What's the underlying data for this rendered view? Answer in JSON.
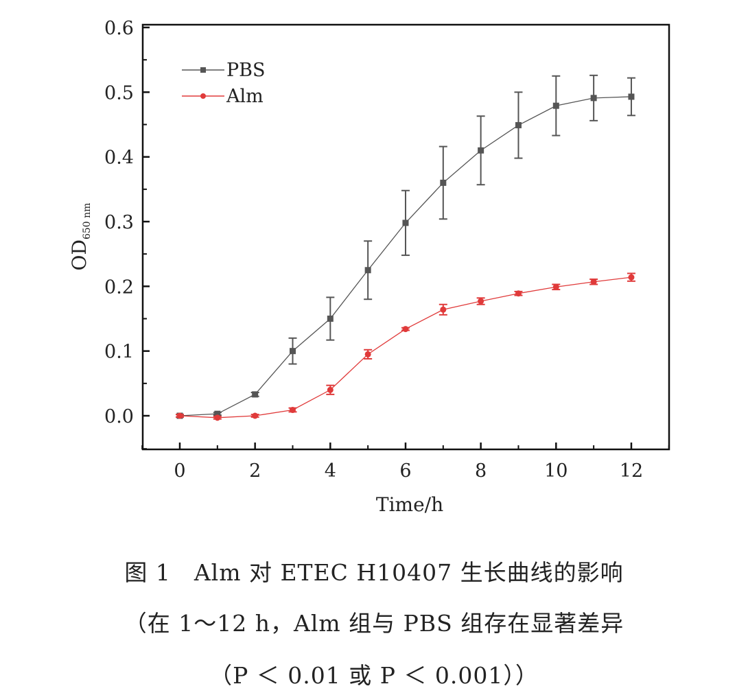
{
  "chart_data": {
    "type": "line",
    "xlabel": "Time/h",
    "ylabel": "OD",
    "ylabel_sub": "650 nm",
    "xlim": [
      -1,
      13.2
    ],
    "ylim": [
      -0.05,
      0.6
    ],
    "xticks": [
      0,
      2,
      4,
      6,
      8,
      10,
      12
    ],
    "yticks": [
      "0.0",
      "0.1",
      "0.2",
      "0.3",
      "0.4",
      "0.5",
      "0.6"
    ],
    "legend_position": "top-left",
    "x": [
      0,
      1,
      2,
      3,
      4,
      5,
      6,
      7,
      8,
      9,
      10,
      11,
      12
    ],
    "series": [
      {
        "name": "PBS",
        "color": "#555555",
        "marker": "square",
        "values": [
          0.0,
          0.003,
          0.033,
          0.1,
          0.15,
          0.225,
          0.298,
          0.36,
          0.41,
          0.449,
          0.479,
          0.491,
          0.493
        ],
        "errors": [
          0.002,
          0.002,
          0.003,
          0.02,
          0.033,
          0.045,
          0.05,
          0.056,
          0.053,
          0.051,
          0.046,
          0.035,
          0.029
        ]
      },
      {
        "name": "Alm",
        "color": "#e03a3a",
        "marker": "circle",
        "values": [
          0.0,
          -0.003,
          0.0,
          0.009,
          0.04,
          0.095,
          0.134,
          0.164,
          0.177,
          0.189,
          0.199,
          0.207,
          0.214
        ],
        "errors": [
          0.002,
          0.002,
          0.002,
          0.003,
          0.007,
          0.007,
          0.002,
          0.008,
          0.005,
          0.003,
          0.004,
          0.004,
          0.006
        ]
      }
    ]
  },
  "caption": {
    "line1": "图 1　Alm 对 ETEC H10407 生长曲线的影响",
    "line2": "（在 1～12 h，Alm 组与 PBS 组存在显著差异",
    "line3": "（P ＜ 0.01 或 P ＜ 0.001））"
  }
}
